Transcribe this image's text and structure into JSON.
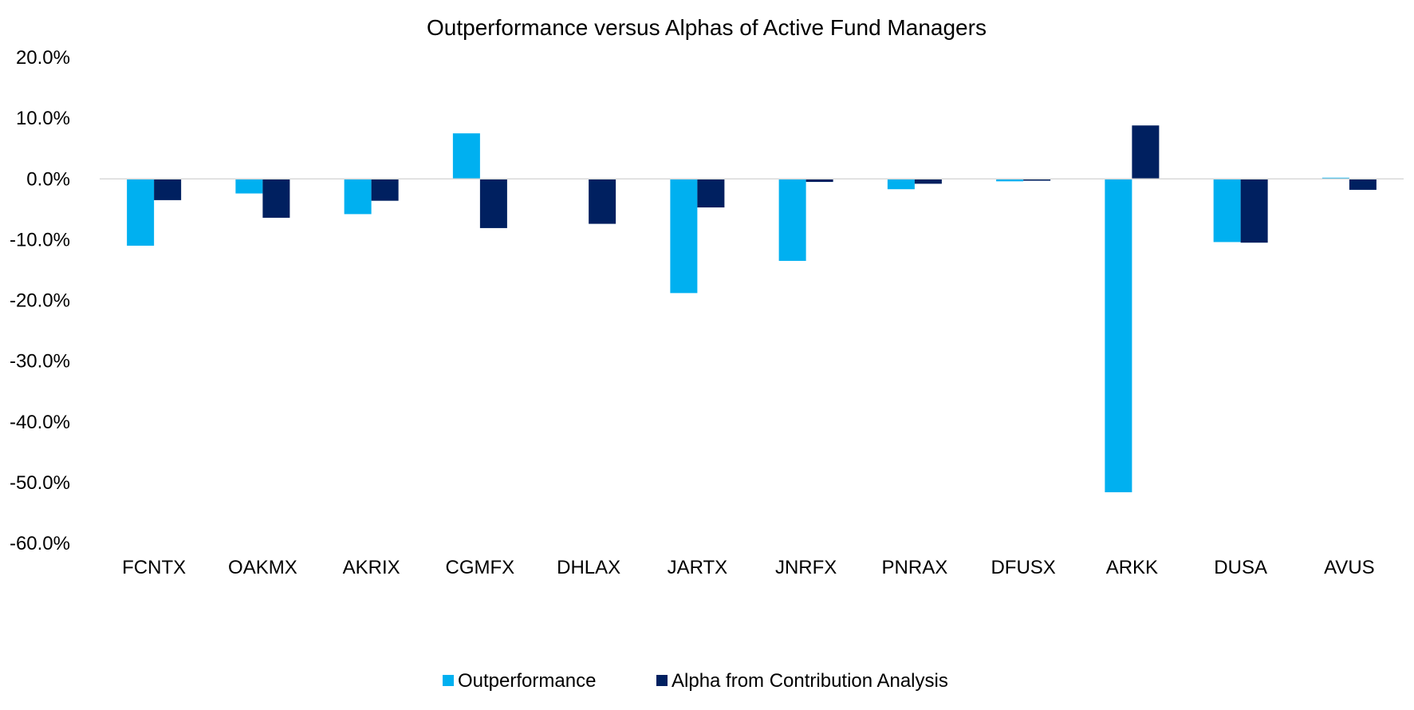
{
  "chart_data": {
    "type": "bar",
    "title": "Outperformance versus Alphas of Active Fund Managers",
    "xlabel": "",
    "ylabel": "",
    "categories": [
      "FCNTX",
      "OAKMX",
      "AKRIX",
      "CGMFX",
      "DHLAX",
      "JARTX",
      "JNRFX",
      "PNRAX",
      "DFUSX",
      "ARKK",
      "DUSA",
      "AVUS"
    ],
    "series": [
      {
        "name": "Outperformance",
        "color": "#00B0F0",
        "values": [
          -11.0,
          -2.4,
          -5.8,
          7.5,
          0.0,
          -18.8,
          -13.5,
          -1.7,
          -0.4,
          -51.6,
          -10.4,
          0.2
        ]
      },
      {
        "name": "Alpha from Contribution Analysis",
        "color": "#002060",
        "values": [
          -3.5,
          -6.4,
          -3.6,
          -8.1,
          -7.4,
          -4.7,
          -0.5,
          -0.8,
          -0.3,
          8.8,
          -10.5,
          -1.8
        ]
      }
    ],
    "ylim": [
      -60,
      20
    ],
    "y_ticks": [
      "20.0%",
      "10.0%",
      "0.0%",
      "-10.0%",
      "-20.0%",
      "-30.0%",
      "-40.0%",
      "-50.0%",
      "-60.0%"
    ],
    "y_tick_values": [
      20,
      10,
      0,
      -10,
      -20,
      -30,
      -40,
      -50,
      -60
    ],
    "grid": false,
    "legend_position": "bottom",
    "axis_color": "#D9D9D9"
  }
}
